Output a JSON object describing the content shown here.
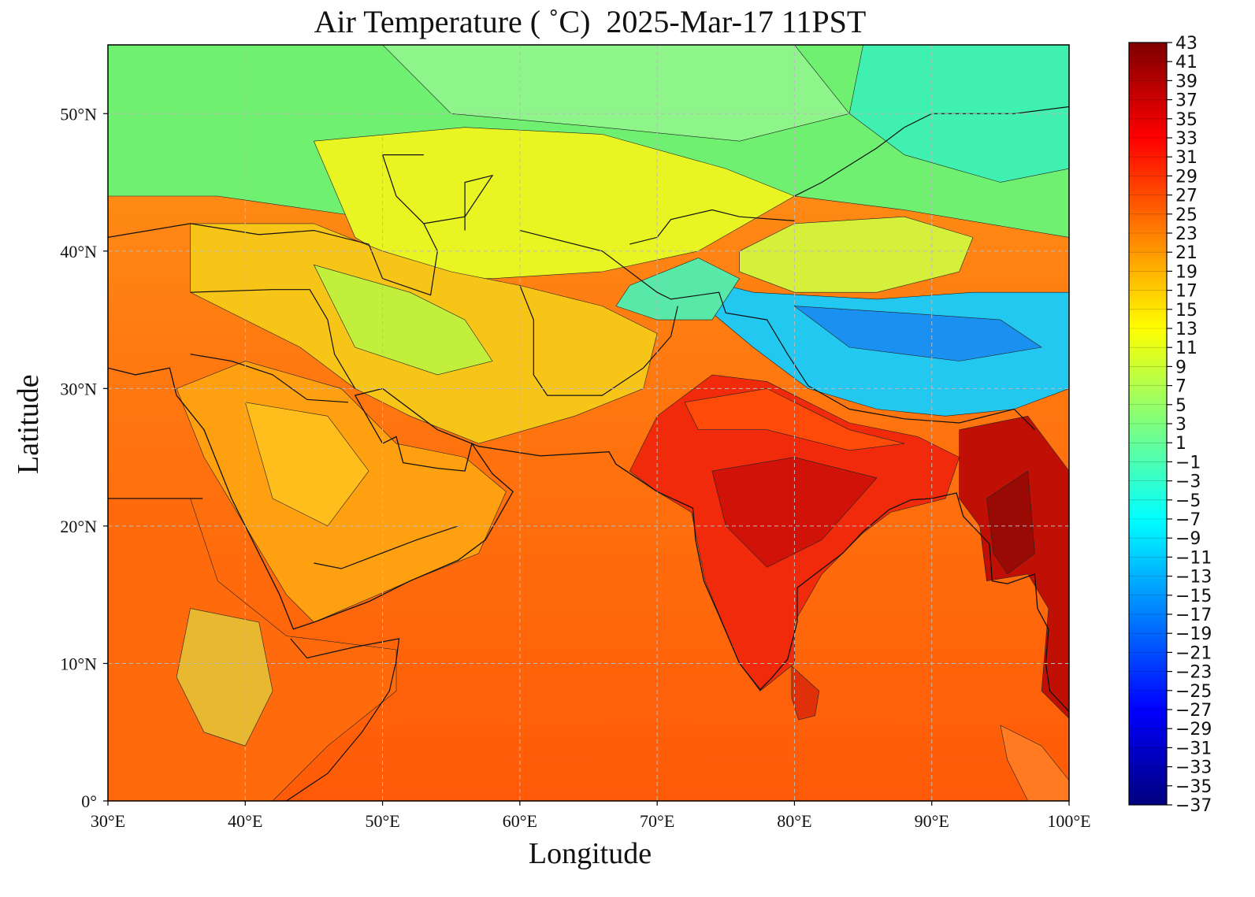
{
  "title": "Air Temperature ( ˚C)  2025-Mar-17 11PST",
  "xlabel": "Longitude",
  "ylabel": "Latitude",
  "x_ticks": [
    {
      "value": 30,
      "label": "30°E"
    },
    {
      "value": 40,
      "label": "40°E"
    },
    {
      "value": 50,
      "label": "50°E"
    },
    {
      "value": 60,
      "label": "60°E"
    },
    {
      "value": 70,
      "label": "70°E"
    },
    {
      "value": 80,
      "label": "80°E"
    },
    {
      "value": 90,
      "label": "90°E"
    },
    {
      "value": 100,
      "label": "100°E"
    }
  ],
  "y_ticks": [
    {
      "value": 0,
      "label": "0°"
    },
    {
      "value": 10,
      "label": "10°N"
    },
    {
      "value": 20,
      "label": "20°N"
    },
    {
      "value": 30,
      "label": "30°N"
    },
    {
      "value": 40,
      "label": "40°N"
    },
    {
      "value": 50,
      "label": "50°N"
    }
  ],
  "extent": {
    "lon": [
      30,
      100
    ],
    "lat": [
      0,
      55
    ]
  },
  "grid": true,
  "colorbar": {
    "position": "right",
    "min": -37,
    "max": 43,
    "labels": [
      "43",
      "41",
      "39",
      "37",
      "35",
      "33",
      "31",
      "29",
      "27",
      "25",
      "23",
      "21",
      "19",
      "17",
      "15",
      "13",
      "11",
      "9",
      "7",
      "5",
      "3",
      "1",
      "−1",
      "−3",
      "−5",
      "−7",
      "−9",
      "−11",
      "−13",
      "−15",
      "−17",
      "−19",
      "−21",
      "−23",
      "−25",
      "−27",
      "−29",
      "−31",
      "−33",
      "−35",
      "−37"
    ]
  },
  "colormap": [
    "#00007f",
    "#0000ff",
    "#007fff",
    "#00ffff",
    "#7fff7f",
    "#ffff00",
    "#ff7f00",
    "#ff0000",
    "#7f0000"
  ]
}
